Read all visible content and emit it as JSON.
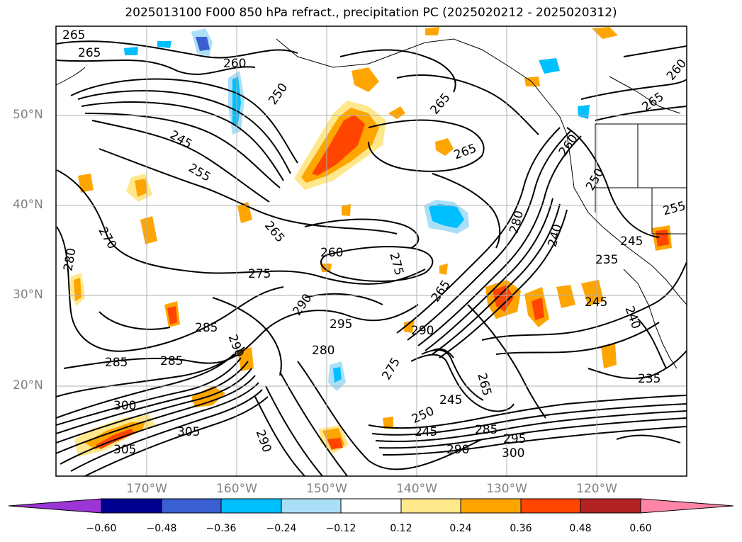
{
  "title": "2025013100 F000 850 hPa refract., precipitation PC (2025020212 - 2025020312)",
  "lat_ticks": [
    "50°N",
    "40°N",
    "30°N",
    "20°N"
  ],
  "lon_ticks": [
    "170°W",
    "160°W",
    "150°W",
    "140°W",
    "130°W",
    "120°W"
  ],
  "colorbar": {
    "ticks": [
      "−0.60",
      "−0.48",
      "−0.36",
      "−0.24",
      "−0.12",
      "0.12",
      "0.24",
      "0.36",
      "0.48",
      "0.60"
    ],
    "colors": [
      "#9b35d6",
      "#000090",
      "#3a5fd0",
      "#00bfff",
      "#aadff7",
      "#ffffff",
      "#ffe88c",
      "#ffa500",
      "#ff4500",
      "#b22222",
      "#ff85a8"
    ]
  },
  "contour_labels": [
    "265",
    "265",
    "260",
    "250",
    "245",
    "255",
    "265",
    "260",
    "270",
    "280",
    "275",
    "290",
    "285",
    "295",
    "280",
    "285",
    "285",
    "290",
    "300",
    "305",
    "305",
    "290",
    "275",
    "250",
    "245",
    "245",
    "265",
    "265",
    "290",
    "290",
    "295",
    "300",
    "285",
    "280",
    "240",
    "250",
    "260",
    "265",
    "260",
    "255",
    "245",
    "235",
    "240",
    "245",
    "235",
    "275",
    "265",
    "265"
  ]
}
